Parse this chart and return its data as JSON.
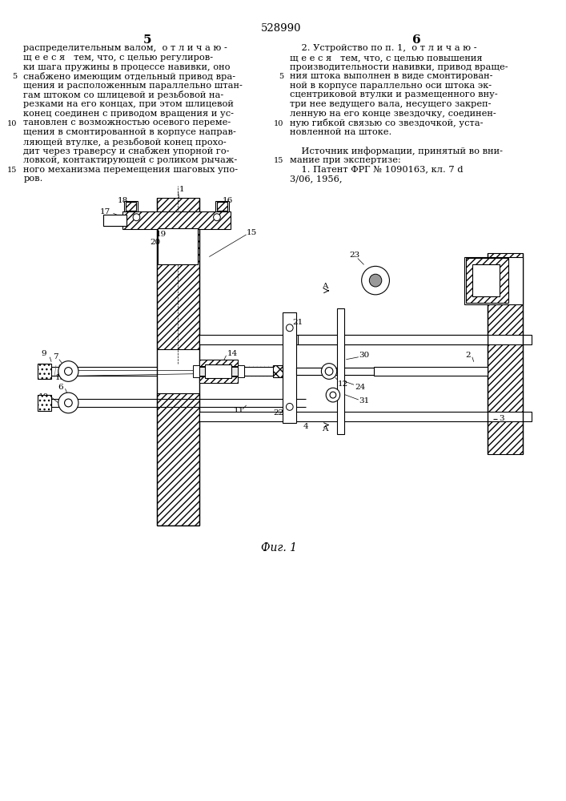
{
  "patent_number": "528990",
  "background_color": "#ffffff",
  "figsize": [
    7.07,
    10.0
  ],
  "dpi": 100,
  "text_fontsize": 8.2,
  "caption_fontsize": 10,
  "left_lines": [
    "распределительным валом,  о т л и ч а ю -",
    "щ е е с я   тем, что, с целью регулиров-",
    "ки шага пружины в процессе навивки, оно",
    "снабжено имеющим отдельный привод вра-",
    "щения и расположенным параллельно штан-",
    "гам штоком со шлицевой и резьбовой на-",
    "резками на его концах, при этом шлицевой",
    "конец соединен с приводом вращения и ус-",
    "тановлен с возможностью осевого переме-",
    "щения в смонтированной в корпусе направ-",
    "ляющей втулке, а резьбовой конец прохо-",
    "дит через траверсу и снабжен упорной го-",
    "ловкой, контактирующей с роликом рычаж-",
    "ного механизма перемещения шаговых упо-",
    "ров."
  ],
  "right_lines": [
    "    2. Устройство по п. 1,  о т л и ч а ю -",
    "щ е е с я   тем, что, с целью повышения",
    "производительности навивки, привод враще-",
    "ния штока выполнен в виде смонтирован-",
    "ной в корпусе параллельно оси штока эк-",
    "сцентриковой втулки и размещенного вну-",
    "три нее ведущего вала, несущего закреп-",
    "ленную на его конце звездочку, соединен-",
    "ную гибкой связью со звездочкой, уста-",
    "новленной на штоке."
  ],
  "src_lines": [
    "    Источник информации, принятый во вни-",
    "мание при экспертизе:",
    "    1. Патент ФРГ № 1090163, кл. 7 d",
    "3/06, 1956,"
  ],
  "figure_caption": "Фиг. 1"
}
